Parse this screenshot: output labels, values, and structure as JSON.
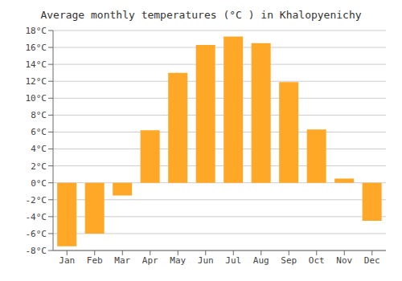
{
  "chart_data": {
    "type": "bar",
    "title": "Average monthly temperatures (°C ) in Khalopyenichy",
    "categories": [
      "Jan",
      "Feb",
      "Mar",
      "Apr",
      "May",
      "Jun",
      "Jul",
      "Aug",
      "Sep",
      "Oct",
      "Nov",
      "Dec"
    ],
    "values": [
      -7.5,
      -6.0,
      -1.5,
      6.2,
      13.0,
      16.3,
      17.3,
      16.5,
      11.9,
      6.3,
      0.5,
      -4.5
    ],
    "color": "#FFA726",
    "ylim": [
      -8,
      18
    ],
    "yticks": [
      {
        "value": -8,
        "label": "-8°C"
      },
      {
        "value": -6,
        "label": "-6°C"
      },
      {
        "value": -4,
        "label": "-4°C"
      },
      {
        "value": -2,
        "label": "-2°C"
      },
      {
        "value": 0,
        "label": "0°C"
      },
      {
        "value": 2,
        "label": "2°C"
      },
      {
        "value": 4,
        "label": "4°C"
      },
      {
        "value": 6,
        "label": "6°C"
      },
      {
        "value": 8,
        "label": "8°C"
      },
      {
        "value": 10,
        "label": "10°C"
      },
      {
        "value": 12,
        "label": "12°C"
      },
      {
        "value": 14,
        "label": "14°C"
      },
      {
        "value": 16,
        "label": "16°C"
      },
      {
        "value": 18,
        "label": "18°C"
      }
    ],
    "grid": true
  }
}
